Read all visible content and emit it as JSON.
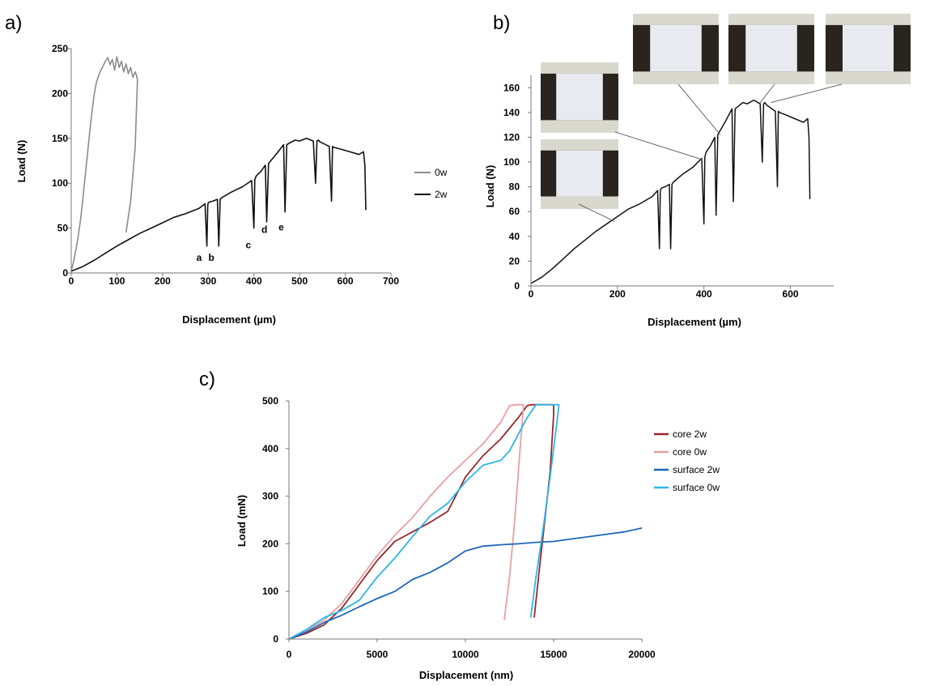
{
  "chart_data": [
    {
      "id": "a",
      "type": "line",
      "panel_label": "a)",
      "xlabel": "Displacement (µm)",
      "ylabel": "Load (N)",
      "xlim": [
        0,
        700
      ],
      "ylim": [
        0,
        250
      ],
      "xticks": [
        0,
        100,
        200,
        300,
        400,
        500,
        600,
        700
      ],
      "yticks": [
        0,
        50,
        100,
        150,
        200,
        250
      ],
      "grid": false,
      "legend_position": "right",
      "series": [
        {
          "name": "0w",
          "color": "#8c8c8c",
          "x": [
            0,
            5,
            10,
            15,
            20,
            25,
            30,
            35,
            40,
            45,
            50,
            55,
            60,
            65,
            70,
            75,
            80,
            85,
            90,
            95,
            100,
            105,
            110,
            115,
            120,
            125,
            130,
            135,
            140,
            143,
            145,
            140,
            130,
            120
          ],
          "y": [
            2,
            12,
            25,
            40,
            58,
            80,
            105,
            130,
            155,
            178,
            198,
            212,
            220,
            226,
            231,
            236,
            240,
            232,
            238,
            226,
            241,
            229,
            236,
            224,
            233,
            222,
            229,
            218,
            224,
            220,
            215,
            140,
            80,
            45
          ]
        },
        {
          "name": "2w",
          "color": "#111111",
          "x": [
            0,
            10,
            25,
            50,
            75,
            100,
            125,
            150,
            175,
            200,
            225,
            250,
            280,
            293,
            297,
            299,
            300,
            302,
            310,
            320,
            323,
            326,
            330,
            350,
            375,
            395,
            400,
            402,
            405,
            415,
            425,
            428,
            432,
            450,
            465,
            468,
            472,
            490,
            500,
            515,
            530,
            535,
            538,
            541,
            545,
            565,
            570,
            572,
            575,
            590,
            610,
            630,
            640,
            643,
            645
          ],
          "y": [
            2,
            4,
            7,
            14,
            22,
            30,
            37,
            44,
            50,
            56,
            62,
            66,
            72,
            77,
            30,
            76,
            78,
            79,
            80,
            82,
            30,
            82,
            84,
            90,
            96,
            103,
            50,
            104,
            108,
            113,
            120,
            57,
            122,
            133,
            143,
            68,
            143,
            148,
            147,
            150,
            147,
            100,
            147,
            148,
            146,
            141,
            80,
            141,
            140,
            138,
            135,
            132,
            135,
            120,
            70
          ]
        }
      ],
      "annotations": [
        "a",
        "b",
        "c",
        "d",
        "e"
      ]
    },
    {
      "id": "b",
      "type": "line",
      "panel_label": "b)",
      "xlabel": "Displacement (µm)",
      "ylabel": "Load (N)",
      "xlim": [
        0,
        700
      ],
      "ylim": [
        0,
        170
      ],
      "xticks": [
        0,
        200,
        400,
        600
      ],
      "yticks": [
        0,
        20,
        40,
        60,
        80,
        100,
        120,
        140,
        160
      ],
      "grid": false,
      "inset_photos": 5,
      "series": [
        {
          "name": "",
          "color": "#111111",
          "x": [
            0,
            10,
            25,
            50,
            75,
            100,
            125,
            150,
            175,
            200,
            225,
            250,
            280,
            293,
            297,
            299,
            300,
            302,
            310,
            320,
            323,
            326,
            330,
            350,
            375,
            395,
            400,
            402,
            405,
            415,
            425,
            428,
            432,
            450,
            465,
            468,
            472,
            490,
            500,
            515,
            530,
            535,
            538,
            541,
            545,
            565,
            570,
            572,
            575,
            590,
            610,
            630,
            640,
            643,
            645
          ],
          "y": [
            2,
            4,
            7,
            14,
            22,
            30,
            37,
            44,
            50,
            56,
            62,
            66,
            72,
            77,
            30,
            76,
            78,
            79,
            80,
            82,
            30,
            82,
            84,
            90,
            96,
            103,
            50,
            104,
            108,
            113,
            120,
            57,
            122,
            133,
            143,
            68,
            143,
            148,
            147,
            150,
            147,
            100,
            147,
            148,
            146,
            141,
            80,
            141,
            140,
            138,
            135,
            132,
            135,
            120,
            70
          ]
        }
      ]
    },
    {
      "id": "c",
      "type": "line",
      "panel_label": "c)",
      "xlabel": "Displacement (nm)",
      "ylabel": "Load (mN)",
      "xlim": [
        0,
        20000
      ],
      "ylim": [
        0,
        500
      ],
      "xticks": [
        0,
        5000,
        10000,
        15000,
        20000
      ],
      "yticks": [
        0,
        100,
        200,
        300,
        400,
        500
      ],
      "grid": false,
      "legend_position": "right",
      "series": [
        {
          "name": "core 2w",
          "color": "#96272a",
          "x": [
            0,
            1000,
            2000,
            3000,
            4000,
            5000,
            6000,
            7000,
            8000,
            9000,
            10000,
            11000,
            12000,
            13000,
            13500,
            13700,
            14000,
            14300,
            14600,
            14900,
            15000,
            15000,
            14800,
            14500,
            14200,
            13900
          ],
          "y": [
            0,
            12,
            30,
            65,
            115,
            165,
            205,
            225,
            245,
            268,
            340,
            385,
            420,
            465,
            490,
            492,
            492,
            492,
            492,
            492,
            492,
            470,
            350,
            250,
            150,
            45
          ]
        },
        {
          "name": "core 0w",
          "color": "#e8a0a0",
          "x": [
            0,
            1000,
            2000,
            3000,
            4000,
            5000,
            6000,
            7000,
            8000,
            9000,
            10000,
            11000,
            12000,
            12500,
            12800,
            13000,
            13300,
            13100,
            12800,
            12500,
            12200
          ],
          "y": [
            0,
            18,
            40,
            75,
            125,
            175,
            218,
            255,
            300,
            340,
            375,
            410,
            455,
            490,
            492,
            492,
            492,
            400,
            250,
            130,
            40
          ]
        },
        {
          "name": "surface 2w",
          "color": "#1e68b8",
          "x": [
            0,
            1000,
            2000,
            3000,
            4000,
            5000,
            6000,
            7000,
            8000,
            9000,
            10000,
            11000,
            12000,
            13000,
            14000,
            15000,
            16000,
            17000,
            18000,
            19000,
            20000
          ],
          "y": [
            0,
            15,
            35,
            50,
            68,
            85,
            100,
            125,
            140,
            160,
            185,
            195,
            198,
            200,
            203,
            205,
            210,
            215,
            220,
            225,
            233
          ]
        },
        {
          "name": "surface 0w",
          "color": "#2cb6ea",
          "x": [
            0,
            1000,
            2000,
            3000,
            4000,
            5000,
            6000,
            7000,
            8000,
            9000,
            10000,
            11000,
            12000,
            12500,
            13000,
            13500,
            14000,
            14500,
            15000,
            15300,
            15200,
            14800,
            14400,
            14000,
            13700
          ],
          "y": [
            0,
            20,
            45,
            60,
            82,
            130,
            170,
            215,
            258,
            285,
            330,
            365,
            375,
            395,
            430,
            465,
            492,
            492,
            492,
            492,
            460,
            340,
            230,
            130,
            45
          ]
        }
      ]
    }
  ]
}
